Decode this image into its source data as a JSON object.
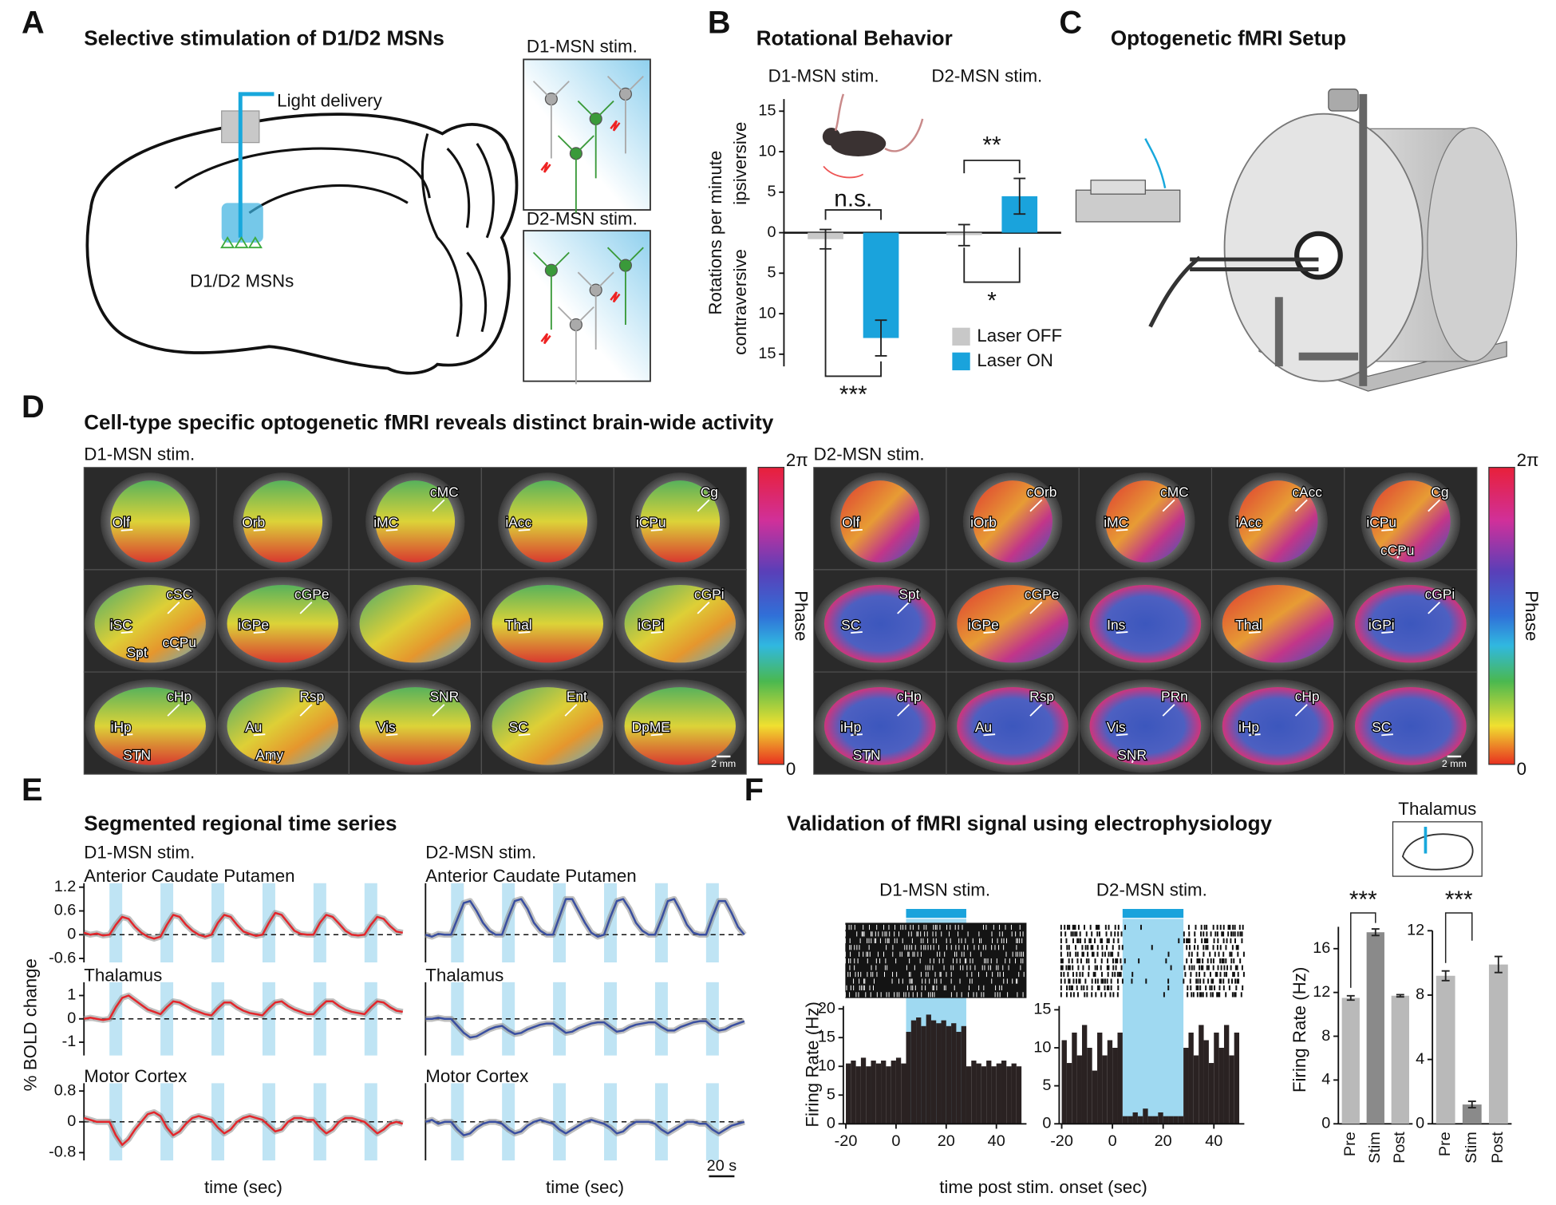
{
  "panel_a": {
    "label": "A",
    "title": "Selective stimulation of D1/D2 MSNs",
    "light": "Light delivery",
    "cells": "D1/D2 MSNs",
    "inset_d1": "D1-MSN stim.",
    "inset_d2": "D2-MSN stim."
  },
  "panel_b": {
    "label": "B",
    "title": "Rotational Behavior"
  },
  "panel_c": {
    "label": "C",
    "title": "Optogenetic fMRI Setup"
  },
  "panel_d": {
    "label": "D",
    "title": "Cell-type specific optogenetic fMRI reveals distinct brain-wide activity",
    "d1": "D1-MSN stim.",
    "d2": "D2-MSN stim.",
    "colorbar": {
      "max": "2π",
      "min": "0",
      "label": "Phase"
    },
    "scale_bar": "2 mm",
    "d1_regions": [
      [
        "Olf"
      ],
      [
        "Orb"
      ],
      [
        "iMC",
        "cMC"
      ],
      [
        "iAcc"
      ],
      [
        "iCPu",
        "Cg"
      ],
      [
        "iSC",
        "cSC",
        "Spt",
        "cCPu"
      ],
      [
        "iGPe",
        "cGPe"
      ],
      [],
      [
        "Thal"
      ],
      [
        "iGPi",
        "cGPi"
      ],
      [
        "iHp",
        "cHp",
        "STN"
      ],
      [
        "Au",
        "Rsp",
        "Amy"
      ],
      [
        "Vis",
        "SNR"
      ],
      [
        "SC",
        "Ent"
      ],
      [
        "DpME"
      ]
    ],
    "d2_regions": [
      [
        "Olf"
      ],
      [
        "iOrb",
        "cOrb"
      ],
      [
        "iMC",
        "cMC"
      ],
      [
        "iAcc",
        "cAcc"
      ],
      [
        "iCPu",
        "Cg",
        "cCPu"
      ],
      [
        "SC",
        "Spt"
      ],
      [
        "iGPe",
        "cGPe"
      ],
      [
        "Ins"
      ],
      [
        "Thal"
      ],
      [
        "iGPi",
        "cGPi"
      ],
      [
        "iHp",
        "cHp",
        "STN"
      ],
      [
        "Au",
        "Rsp"
      ],
      [
        "Vis",
        "PRn",
        "SNR"
      ],
      [
        "iHp",
        "cHp"
      ],
      [
        "SC"
      ]
    ]
  },
  "panel_e": {
    "label": "E",
    "title": "Segmented regional time series",
    "d1": "D1-MSN stim.",
    "d2": "D2-MSN stim.",
    "y_label": "% BOLD change",
    "x_label": "time (sec)",
    "stim_periods": [
      [
        20,
        30
      ],
      [
        60,
        70
      ],
      [
        100,
        110
      ],
      [
        140,
        150
      ],
      [
        180,
        190
      ],
      [
        220,
        230
      ]
    ],
    "scale_bar": {
      "value": 20,
      "label": "20 s"
    }
  },
  "panel_f": {
    "label": "F",
    "title": "Validation of fMRI signal using electrophysiology",
    "x_label": "time post stim. onset (sec)",
    "inset": "Thalamus"
  },
  "chart_data": [
    {
      "type": "bar",
      "y_label": "Rotations per minute",
      "y_label_up": "ipsiversive",
      "y_label_down": "contraversive",
      "categories": [
        "D1-MSN stim.",
        "D2-MSN stim."
      ],
      "series": [
        {
          "name": "Laser OFF",
          "color": "#c8c8c8",
          "values": [
            -0.8,
            -0.3
          ],
          "errors": [
            1.2,
            1.3
          ]
        },
        {
          "name": "Laser ON",
          "color": "#1aa3dc",
          "values": [
            -13,
            4.5
          ],
          "errors": [
            2.2,
            2.2
          ]
        }
      ],
      "ylim": [
        -16.5,
        16.5
      ],
      "yticks": [
        {
          "value": -15,
          "label": "15"
        },
        {
          "value": -10,
          "label": "10"
        },
        {
          "value": -5,
          "label": "5"
        },
        0,
        5,
        10,
        15
      ],
      "annotations": [
        "n.s.",
        "**",
        "*",
        "***"
      ]
    },
    {
      "type": "line",
      "title": "Anterior Caudate Putamen",
      "color": "#e3262b",
      "xlim": [
        0,
        250
      ],
      "ylim": [
        -0.6,
        1.2
      ],
      "yticks": [
        -0.6,
        0,
        0.6,
        1.2
      ],
      "x": [
        0,
        5,
        10,
        15,
        20,
        25,
        30,
        35,
        40,
        45,
        50,
        55,
        60,
        65,
        70,
        75,
        80,
        85,
        90,
        95,
        100,
        105,
        110,
        115,
        120,
        125,
        130,
        135,
        140,
        145,
        150,
        155,
        160,
        165,
        170,
        175,
        180,
        185,
        190,
        195,
        200,
        205,
        210,
        215,
        220,
        225,
        230,
        235,
        240,
        245,
        250
      ],
      "values": [
        0.05,
        0,
        0.03,
        -0.02,
        0,
        0.25,
        0.45,
        0.4,
        0.2,
        0.05,
        -0.05,
        -0.1,
        -0.05,
        0.25,
        0.5,
        0.45,
        0.25,
        0.1,
        0,
        -0.05,
        0,
        0.3,
        0.5,
        0.45,
        0.25,
        0.08,
        0.02,
        -0.03,
        0,
        0.3,
        0.55,
        0.5,
        0.3,
        0.1,
        0.02,
        0,
        0,
        0.3,
        0.5,
        0.45,
        0.28,
        0.1,
        0,
        -0.02,
        0,
        0.25,
        0.45,
        0.4,
        0.22,
        0.08,
        0.05
      ]
    },
    {
      "type": "line",
      "title": "Anterior Caudate Putamen",
      "color": "#3a4fa0",
      "xlim": [
        0,
        250
      ],
      "ylim": [
        -0.6,
        1.2
      ],
      "x": [
        0,
        5,
        10,
        15,
        20,
        25,
        30,
        35,
        40,
        45,
        50,
        55,
        60,
        65,
        70,
        75,
        80,
        85,
        90,
        95,
        100,
        105,
        110,
        115,
        120,
        125,
        130,
        135,
        140,
        145,
        150,
        155,
        160,
        165,
        170,
        175,
        180,
        185,
        190,
        195,
        200,
        205,
        210,
        215,
        220,
        225,
        230,
        235,
        240,
        245,
        250
      ],
      "values": [
        0,
        -0.05,
        0.02,
        0,
        0,
        0.4,
        0.8,
        0.85,
        0.6,
        0.3,
        0.1,
        0,
        0,
        0.45,
        0.85,
        0.9,
        0.65,
        0.3,
        0.1,
        0,
        0,
        0.45,
        0.9,
        0.9,
        0.6,
        0.3,
        0.05,
        -0.05,
        0,
        0.45,
        0.85,
        0.9,
        0.65,
        0.3,
        0.1,
        0,
        0,
        0.4,
        0.85,
        0.9,
        0.6,
        0.25,
        0.05,
        0,
        0,
        0.45,
        0.85,
        0.85,
        0.55,
        0.2,
        0
      ]
    },
    {
      "type": "line",
      "title": "Thalamus",
      "color": "#e3262b",
      "xlim": [
        0,
        250
      ],
      "ylim": [
        -1.4,
        1.4
      ],
      "yticks": [
        -1,
        0,
        1
      ],
      "x": [
        0,
        5,
        10,
        15,
        20,
        25,
        30,
        35,
        40,
        45,
        50,
        55,
        60,
        65,
        70,
        75,
        80,
        85,
        90,
        95,
        100,
        105,
        110,
        115,
        120,
        125,
        130,
        135,
        140,
        145,
        150,
        155,
        160,
        165,
        170,
        175,
        180,
        185,
        190,
        195,
        200,
        205,
        210,
        215,
        220,
        225,
        230,
        235,
        240,
        245,
        250
      ],
      "values": [
        0,
        0.05,
        0,
        -0.05,
        0,
        0.5,
        0.9,
        1,
        0.8,
        0.6,
        0.4,
        0.3,
        0.2,
        0.5,
        0.75,
        0.7,
        0.55,
        0.4,
        0.3,
        0.2,
        0.15,
        0.45,
        0.7,
        0.7,
        0.5,
        0.35,
        0.25,
        0.2,
        0.15,
        0.45,
        0.7,
        0.75,
        0.55,
        0.4,
        0.3,
        0.2,
        0.2,
        0.5,
        0.75,
        0.75,
        0.55,
        0.4,
        0.3,
        0.25,
        0.2,
        0.5,
        0.75,
        0.7,
        0.5,
        0.35,
        0.3
      ]
    },
    {
      "type": "line",
      "title": "Thalamus",
      "color": "#3a4fa0",
      "xlim": [
        0,
        250
      ],
      "ylim": [
        -1.4,
        1.4
      ],
      "x": [
        0,
        5,
        10,
        15,
        20,
        25,
        30,
        35,
        40,
        45,
        50,
        55,
        60,
        65,
        70,
        75,
        80,
        85,
        90,
        95,
        100,
        105,
        110,
        115,
        120,
        125,
        130,
        135,
        140,
        145,
        150,
        155,
        160,
        165,
        170,
        175,
        180,
        185,
        190,
        195,
        200,
        205,
        210,
        215,
        220,
        225,
        230,
        235,
        240,
        245,
        250
      ],
      "values": [
        0,
        0,
        0.05,
        0,
        0,
        -0.3,
        -0.6,
        -0.8,
        -0.75,
        -0.6,
        -0.45,
        -0.35,
        -0.3,
        -0.5,
        -0.65,
        -0.6,
        -0.45,
        -0.35,
        -0.25,
        -0.2,
        -0.2,
        -0.4,
        -0.6,
        -0.55,
        -0.4,
        -0.3,
        -0.2,
        -0.15,
        -0.15,
        -0.35,
        -0.55,
        -0.5,
        -0.35,
        -0.25,
        -0.2,
        -0.15,
        -0.15,
        -0.35,
        -0.5,
        -0.5,
        -0.35,
        -0.25,
        -0.15,
        -0.1,
        -0.1,
        -0.35,
        -0.5,
        -0.45,
        -0.3,
        -0.2,
        -0.1
      ]
    },
    {
      "type": "line",
      "title": "Motor Cortex",
      "color": "#e3262b",
      "xlim": [
        0,
        250
      ],
      "ylim": [
        -0.9,
        0.9
      ],
      "yticks": [
        -0.8,
        0,
        0.8
      ],
      "x": [
        0,
        5,
        10,
        15,
        20,
        25,
        30,
        35,
        40,
        45,
        50,
        55,
        60,
        65,
        70,
        75,
        80,
        85,
        90,
        95,
        100,
        105,
        110,
        115,
        120,
        125,
        130,
        135,
        140,
        145,
        150,
        155,
        160,
        165,
        170,
        175,
        180,
        185,
        190,
        195,
        200,
        205,
        210,
        215,
        220,
        225,
        230,
        235,
        240,
        245,
        250
      ],
      "values": [
        0.1,
        0.05,
        0,
        0,
        0,
        -0.35,
        -0.6,
        -0.45,
        -0.2,
        0,
        0.2,
        0.25,
        0.15,
        -0.15,
        -0.35,
        -0.25,
        -0.05,
        0.1,
        0.15,
        0.1,
        0.05,
        -0.15,
        -0.3,
        -0.2,
        0,
        0.1,
        0.15,
        0.1,
        0.05,
        -0.1,
        -0.25,
        -0.2,
        0,
        0.1,
        0.1,
        0.05,
        0.05,
        -0.15,
        -0.3,
        -0.2,
        0,
        0.1,
        0.1,
        0.05,
        0,
        -0.15,
        -0.3,
        -0.2,
        -0.05,
        0,
        -0.05
      ]
    },
    {
      "type": "line",
      "title": "Motor Cortex",
      "color": "#3a4fa0",
      "xlim": [
        0,
        250
      ],
      "ylim": [
        -0.9,
        0.9
      ],
      "x": [
        0,
        5,
        10,
        15,
        20,
        25,
        30,
        35,
        40,
        45,
        50,
        55,
        60,
        65,
        70,
        75,
        80,
        85,
        90,
        95,
        100,
        105,
        110,
        115,
        120,
        125,
        130,
        135,
        140,
        145,
        150,
        155,
        160,
        165,
        170,
        175,
        180,
        185,
        190,
        195,
        200,
        205,
        210,
        215,
        220,
        225,
        230,
        235,
        240,
        245,
        250
      ],
      "values": [
        0,
        0.05,
        -0.05,
        0,
        0,
        -0.2,
        -0.35,
        -0.3,
        -0.15,
        -0.05,
        0,
        0,
        -0.05,
        -0.2,
        -0.3,
        -0.25,
        -0.1,
        0,
        0.05,
        0,
        -0.05,
        -0.2,
        -0.3,
        -0.2,
        -0.1,
        0,
        0.05,
        0,
        -0.05,
        -0.15,
        -0.3,
        -0.25,
        -0.1,
        0,
        0,
        0,
        -0.05,
        -0.2,
        -0.3,
        -0.2,
        -0.1,
        0,
        0,
        -0.05,
        -0.05,
        -0.2,
        -0.3,
        -0.2,
        -0.1,
        -0.05,
        0
      ]
    },
    {
      "type": "histogram",
      "title": "D1-MSN stim.",
      "y_label": "Firing Rate (Hz)",
      "color": "#2a2222",
      "stim_color": "#9fd9f1",
      "bins": [
        -20,
        -18,
        -16,
        -14,
        -12,
        -10,
        -8,
        -6,
        -4,
        -2,
        0,
        2,
        4,
        6,
        8,
        10,
        12,
        14,
        16,
        18,
        20,
        22,
        24,
        26,
        28,
        30,
        32,
        34,
        36,
        38,
        40,
        42,
        44,
        46,
        48,
        50
      ],
      "values": [
        10.5,
        11,
        10,
        11.5,
        10,
        11,
        10.5,
        11,
        10,
        11,
        11.5,
        10.5,
        16,
        18,
        18.5,
        17,
        19,
        18,
        17.5,
        18,
        17,
        17.5,
        16,
        17,
        10,
        11,
        10.5,
        10,
        11,
        10,
        10.5,
        11,
        10,
        10.5,
        10
      ],
      "stim": [
        4,
        28
      ],
      "xlim": [
        -21,
        52
      ],
      "xticks": [
        -20,
        0,
        20,
        40
      ],
      "ylim": [
        0,
        20.5
      ],
      "yticks": [
        0,
        5,
        10,
        15,
        20
      ]
    },
    {
      "type": "histogram",
      "title": "D2-MSN stim.",
      "color": "#2a2222",
      "stim_color": "#9fd9f1",
      "bins": [
        -20,
        -18,
        -16,
        -14,
        -12,
        -10,
        -8,
        -6,
        -4,
        -2,
        0,
        2,
        4,
        6,
        8,
        10,
        12,
        14,
        16,
        18,
        20,
        22,
        24,
        26,
        28,
        30,
        32,
        34,
        36,
        38,
        40,
        42,
        44,
        46,
        48,
        50
      ],
      "values": [
        11,
        8,
        12,
        9,
        13,
        10,
        7,
        12,
        9,
        11,
        10,
        12,
        1,
        1,
        1.5,
        1,
        2,
        1,
        1,
        1.5,
        1,
        1,
        1,
        1,
        10,
        12,
        9,
        13,
        11,
        8,
        12,
        10,
        13,
        9,
        12
      ],
      "stim": [
        4,
        28
      ],
      "xlim": [
        -21,
        52
      ],
      "xticks": [
        -20,
        0,
        20,
        40
      ],
      "ylim": [
        0,
        15.5
      ],
      "yticks": [
        0,
        5,
        10,
        15
      ]
    },
    {
      "type": "bar",
      "y_label": "Firing Rate (Hz)",
      "categories": [
        "Pre",
        "Stim",
        "Post"
      ],
      "values": [
        11.5,
        17.5,
        11.7
      ],
      "errors": [
        0.2,
        0.3,
        0.1
      ],
      "colors": [
        "#b9b9b9",
        "#8a8a8a",
        "#b9b9b9"
      ],
      "ylim": [
        0,
        18
      ],
      "yticks": [
        0,
        4,
        8,
        12,
        16
      ],
      "annotation": "***"
    },
    {
      "type": "bar",
      "categories": [
        "Pre",
        "Stim",
        "Post"
      ],
      "values": [
        9.2,
        1.2,
        9.9
      ],
      "errors": [
        0.3,
        0.2,
        0.5
      ],
      "colors": [
        "#b9b9b9",
        "#8a8a8a",
        "#b9b9b9"
      ],
      "ylim": [
        0,
        12
      ],
      "yticks": [
        0,
        4,
        8,
        12
      ],
      "annotation": "***"
    }
  ]
}
